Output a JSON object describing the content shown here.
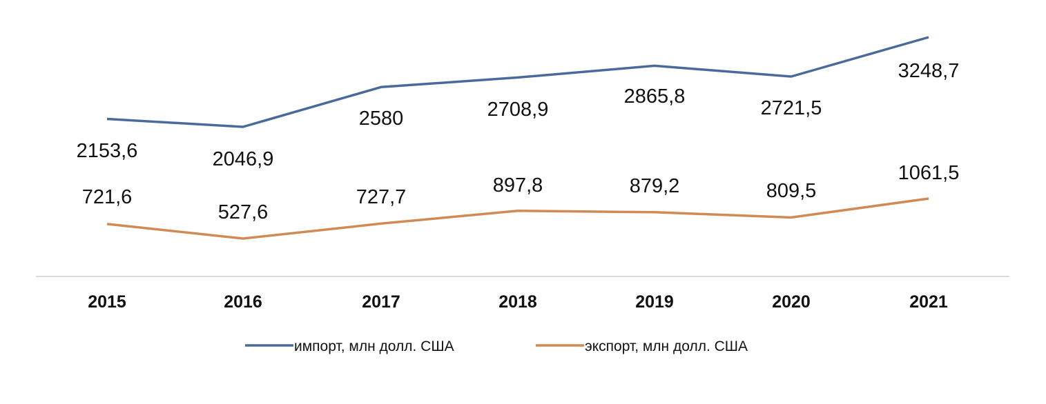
{
  "chart_data": {
    "type": "line",
    "title": "",
    "xlabel": "",
    "ylabel": "",
    "categories": [
      "2015",
      "2016",
      "2017",
      "2018",
      "2019",
      "2020",
      "2021"
    ],
    "series": [
      {
        "name": "импорт, млн долл. США",
        "color": "#4a6a9c",
        "values": [
          2153.6,
          2046.9,
          2580,
          2708.9,
          2865.8,
          2721.5,
          3248.7
        ],
        "labels": [
          "2153,6",
          "2046,9",
          "2580",
          "2708,9",
          "2865,8",
          "2721,5",
          "3248,7"
        ]
      },
      {
        "name": "экспорт, млн долл. США",
        "color": "#d08a55",
        "values": [
          721.6,
          527.6,
          727.7,
          897.8,
          879.2,
          809.5,
          1061.5
        ],
        "labels": [
          "721,6",
          "527,6",
          "727,7",
          "897,8",
          "879,2",
          "809,5",
          "1061,5"
        ]
      }
    ],
    "grid": false,
    "y_axis_visible": false,
    "legend_position": "bottom"
  },
  "legend": {
    "import_label": "импорт, млн долл. США",
    "export_label": "экспорт, млн долл. США"
  }
}
